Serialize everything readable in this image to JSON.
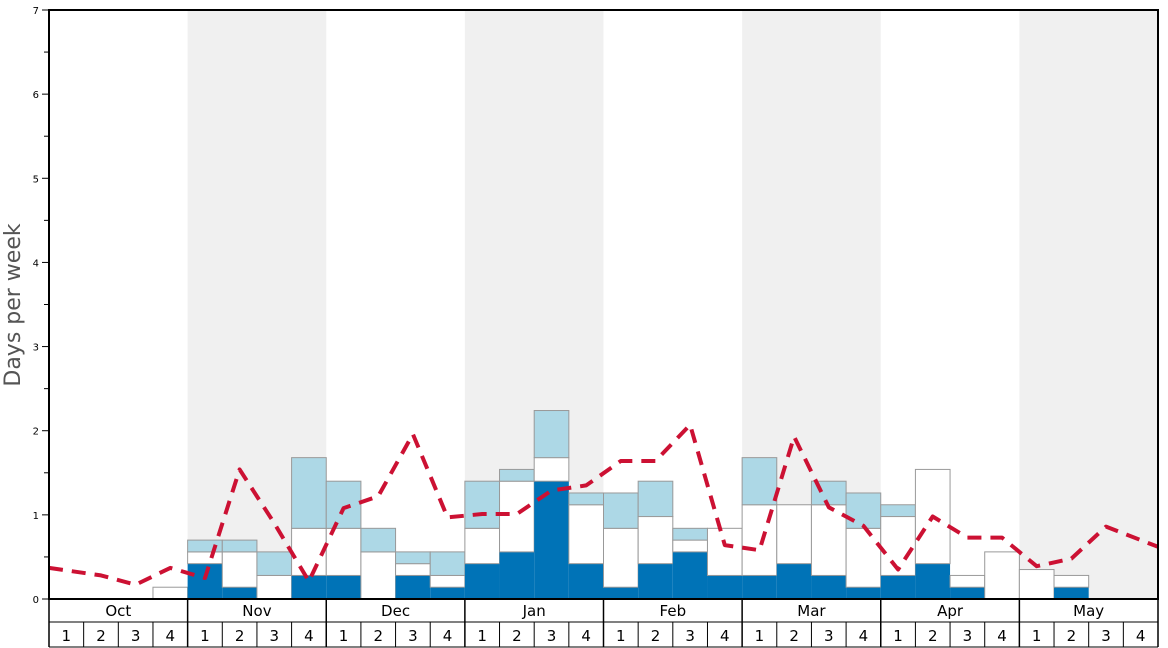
{
  "chart_data": {
    "type": "bar",
    "ylabel": "Days per week",
    "ylim": [
      0,
      7
    ],
    "yticks": [
      0,
      1,
      2,
      3,
      4,
      5,
      6,
      7
    ],
    "months": [
      "Oct",
      "Nov",
      "Dec",
      "Jan",
      "Feb",
      "Mar",
      "Apr",
      "May"
    ],
    "weeks": [
      "1",
      "2",
      "3",
      "4"
    ],
    "colors": {
      "dark": "#0073b7",
      "white": "#ffffff",
      "light": "#add8e6",
      "line": "#cc1133",
      "shade": "#f0f0f0"
    },
    "series": [
      {
        "values": [
          0,
          0,
          0,
          0,
          0.42,
          0.14,
          0,
          0.28,
          0.28,
          0,
          0.28,
          0.14,
          0.42,
          0.56,
          1.4,
          0.42,
          0.14,
          0.42,
          0.56,
          0.28,
          0.28,
          0.42,
          0.28,
          0.14,
          0.28,
          0.42,
          0.14,
          0,
          0,
          0.14,
          0,
          0
        ]
      },
      {
        "values": [
          0,
          0,
          0,
          0.14,
          0.14,
          0.42,
          0.28,
          0.56,
          0.56,
          0.56,
          0.14,
          0.14,
          0.42,
          0.84,
          0.28,
          0.7,
          0.7,
          0.56,
          0.14,
          0.56,
          0.84,
          0.7,
          0.84,
          0.7,
          0.7,
          1.12,
          0.14,
          0.56,
          0.35,
          0.14,
          0,
          0
        ]
      },
      {
        "values": [
          0,
          0,
          0,
          0,
          0.14,
          0.14,
          0.28,
          0.84,
          0.56,
          0.28,
          0.14,
          0.28,
          0.56,
          0.14,
          0.56,
          0.14,
          0.42,
          0.42,
          0.14,
          0,
          0.56,
          0,
          0.28,
          0.42,
          0.14,
          0,
          0,
          0,
          0,
          0,
          0,
          0
        ]
      },
      {
        "values": [
          0.37,
          0.28,
          0.17,
          0.37,
          0.25,
          1.54,
          0.9,
          0.21,
          1.08,
          1.22,
          1.96,
          0.97,
          1.01,
          1.01,
          1.29,
          1.35,
          1.64,
          1.64,
          2.07,
          0.64,
          0.58,
          1.93,
          1.09,
          0.87,
          0.35,
          0.98,
          0.73,
          0.73,
          0.39,
          0.48,
          0.86,
          0.62
        ]
      }
    ]
  }
}
